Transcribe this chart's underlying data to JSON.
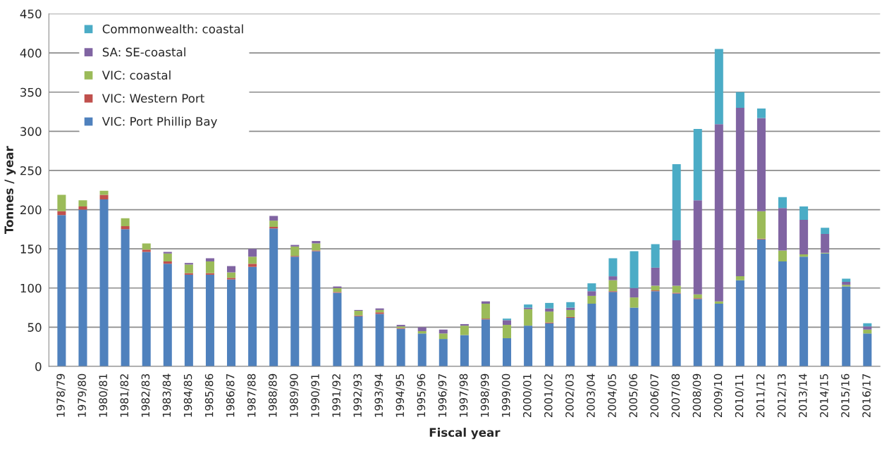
{
  "chart_data": {
    "type": "bar",
    "stacked": true,
    "xlabel": "Fiscal year",
    "ylabel": "Tonnes / year",
    "categories": [
      "1978/79",
      "1979/80",
      "1980/81",
      "1981/82",
      "1982/83",
      "1983/84",
      "1984/85",
      "1985/86",
      "1986/87",
      "1987/88",
      "1988/89",
      "1989/90",
      "1990/91",
      "1991/92",
      "1992/93",
      "1993/94",
      "1994/95",
      "1995/96",
      "1996/97",
      "1997/98",
      "1998/99",
      "1999/00",
      "2000/01",
      "2001/02",
      "2002/03",
      "2003/04",
      "2004/05",
      "2005/06",
      "2006/07",
      "2007/08",
      "2008/09",
      "2009/10",
      "2010/11",
      "2011/12",
      "2012/13",
      "2013/14",
      "2014/15",
      "2015/16",
      "2016/17"
    ],
    "series": [
      {
        "name": "VIC: Port Phillip Bay",
        "color": "#4f81bd",
        "values": [
          193,
          200,
          213,
          175,
          146,
          131,
          117,
          117,
          111,
          127,
          176,
          140,
          147,
          94,
          64,
          67,
          48,
          42,
          35,
          40,
          60,
          36,
          52,
          55,
          62,
          80,
          95,
          75,
          96,
          93,
          86,
          80,
          110,
          162,
          134,
          140,
          144,
          102,
          42
        ]
      },
      {
        "name": "VIC: Western Port",
        "color": "#c0504d",
        "values": [
          5,
          4,
          6,
          4,
          3,
          3,
          2,
          2,
          2,
          4,
          2,
          1,
          1,
          1,
          1,
          2,
          1,
          0,
          0,
          0,
          1,
          0,
          0,
          1,
          1,
          0,
          1,
          0,
          1,
          1,
          1,
          0,
          0,
          1,
          0,
          0,
          0,
          0,
          0
        ]
      },
      {
        "name": "VIC: coastal",
        "color": "#9bbb59",
        "values": [
          21,
          8,
          5,
          10,
          8,
          10,
          11,
          15,
          7,
          9,
          8,
          12,
          9,
          5,
          6,
          3,
          2,
          3,
          7,
          12,
          19,
          17,
          21,
          14,
          9,
          10,
          14,
          13,
          6,
          9,
          5,
          3,
          5,
          35,
          14,
          3,
          1,
          2,
          5
        ]
      },
      {
        "name": "SA: SE-coastal",
        "color": "#8064a2",
        "values": [
          0,
          0,
          0,
          0,
          0,
          2,
          2,
          4,
          8,
          10,
          6,
          2,
          3,
          2,
          1,
          2,
          2,
          5,
          5,
          2,
          3,
          6,
          2,
          4,
          3,
          6,
          5,
          12,
          23,
          58,
          120,
          226,
          215,
          119,
          54,
          44,
          24,
          4,
          4
        ]
      },
      {
        "name": "Commonwealth: coastal",
        "color": "#4bacc6",
        "values": [
          0,
          0,
          0,
          0,
          0,
          0,
          0,
          0,
          0,
          0,
          0,
          0,
          0,
          0,
          0,
          0,
          0,
          0,
          0,
          0,
          0,
          2,
          4,
          7,
          7,
          10,
          23,
          47,
          30,
          97,
          91,
          96,
          20,
          12,
          14,
          17,
          8,
          4,
          4
        ]
      }
    ],
    "ylim": [
      0,
      450
    ],
    "yticks": [
      0,
      50,
      100,
      150,
      200,
      250,
      300,
      350,
      400,
      450
    ],
    "grid": "y",
    "legend": "top left"
  }
}
